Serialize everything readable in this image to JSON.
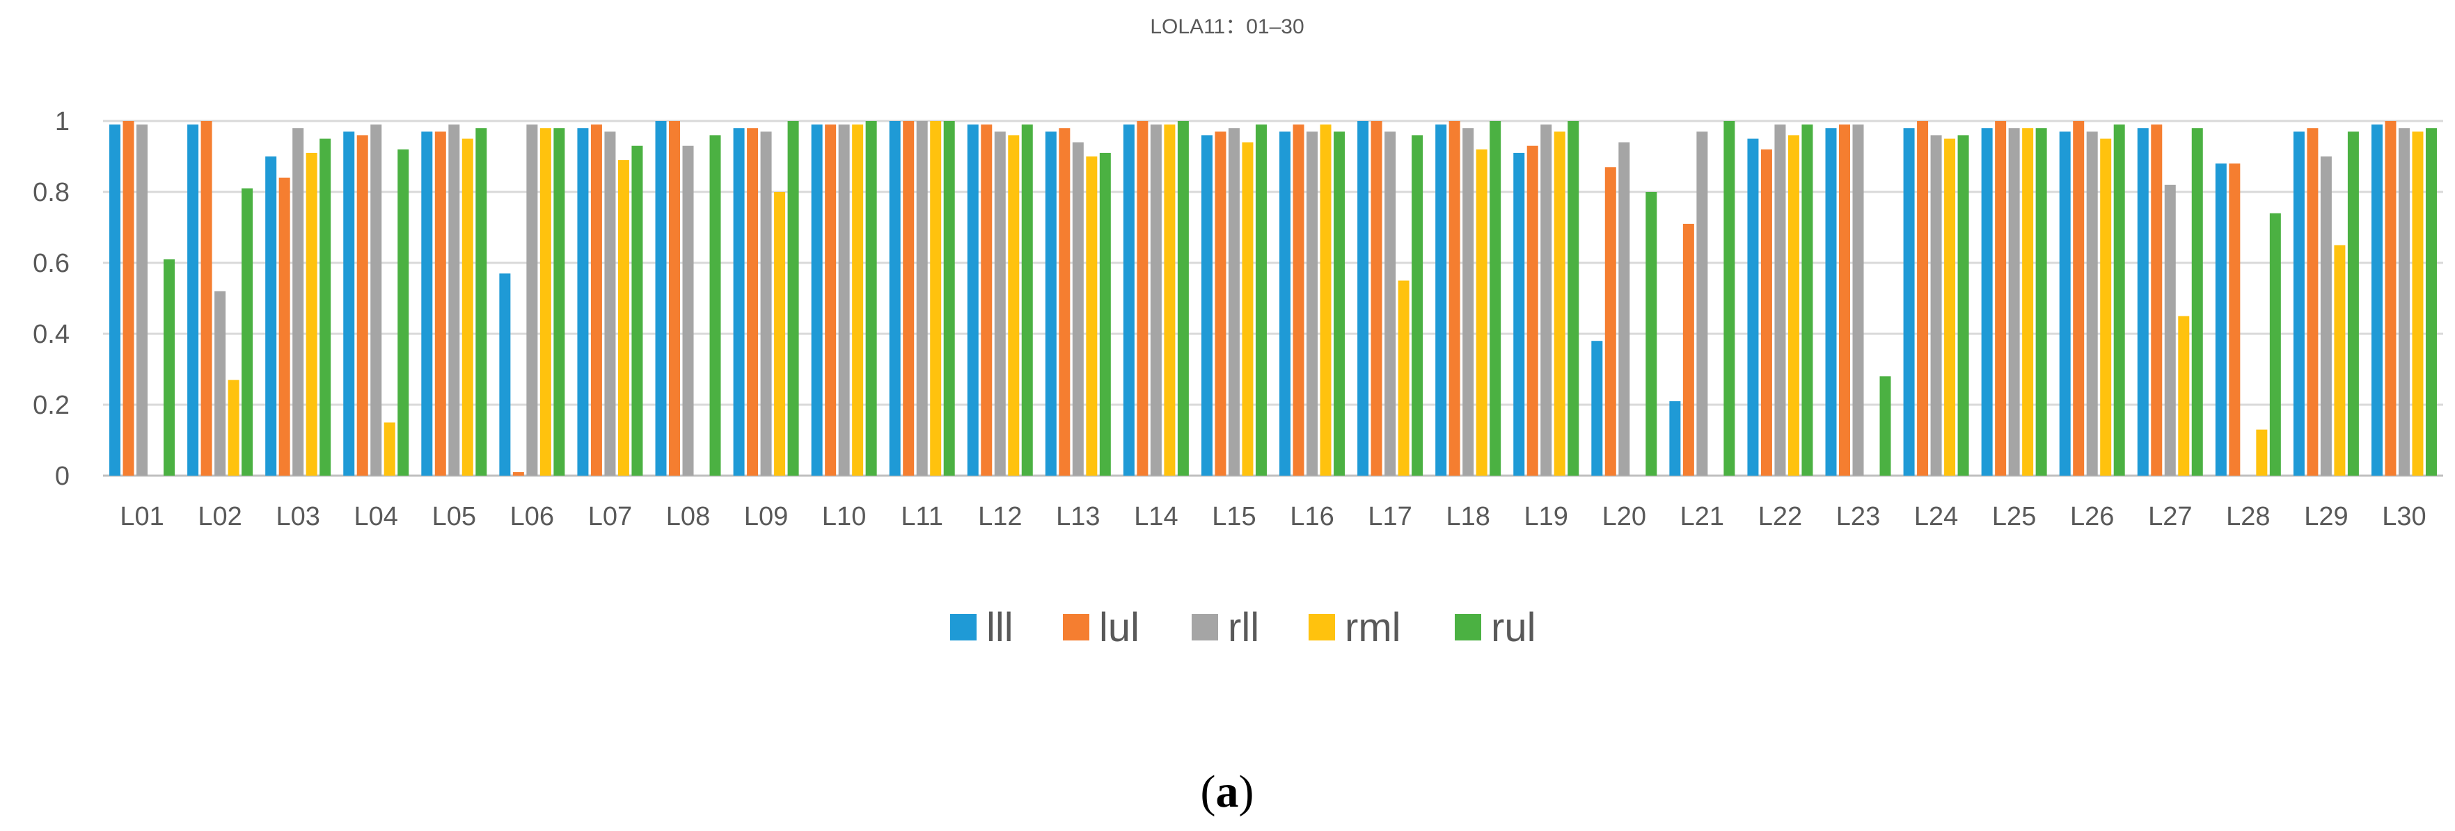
{
  "chart_data": {
    "type": "bar",
    "title": "LOLA11：01–30",
    "caption_prefix": "(",
    "caption_letter": "a",
    "caption_suffix": ")",
    "xlabel": "",
    "ylabel": "",
    "ylim": [
      0,
      1
    ],
    "yticks": [
      "0",
      "0.2",
      "0.4",
      "0.6",
      "0.8",
      "1"
    ],
    "grid": true,
    "legend_position": "bottom",
    "categories": [
      "L01",
      "L02",
      "L03",
      "L04",
      "L05",
      "L06",
      "L07",
      "L08",
      "L09",
      "L10",
      "L11",
      "L12",
      "L13",
      "L14",
      "L15",
      "L16",
      "L17",
      "L18",
      "L19",
      "L20",
      "L21",
      "L22",
      "L23",
      "L24",
      "L25",
      "L26",
      "L27",
      "L28",
      "L29",
      "L30"
    ],
    "series": [
      {
        "name": "lll",
        "color": "#1f9ad6",
        "values": [
          0.99,
          0.99,
          0.9,
          0.97,
          0.97,
          0.57,
          0.98,
          1.0,
          0.98,
          0.99,
          1.0,
          0.99,
          0.97,
          0.99,
          0.96,
          0.97,
          1.0,
          0.99,
          0.91,
          0.38,
          0.21,
          0.95,
          0.98,
          0.98,
          0.98,
          0.97,
          0.98,
          0.88,
          0.97,
          0.99
        ]
      },
      {
        "name": "lul",
        "color": "#f57e30",
        "values": [
          1.0,
          1.0,
          0.84,
          0.96,
          0.97,
          0.01,
          0.99,
          1.0,
          0.98,
          0.99,
          1.0,
          0.99,
          0.98,
          1.0,
          0.97,
          0.99,
          1.0,
          1.0,
          0.93,
          0.87,
          0.71,
          0.92,
          0.99,
          1.0,
          1.0,
          1.0,
          0.99,
          0.88,
          0.98,
          1.0
        ]
      },
      {
        "name": "rll",
        "color": "#a5a5a5",
        "values": [
          0.99,
          0.52,
          0.98,
          0.99,
          0.99,
          0.99,
          0.97,
          0.93,
          0.97,
          0.99,
          1.0,
          0.97,
          0.94,
          0.99,
          0.98,
          0.97,
          0.97,
          0.98,
          0.99,
          0.94,
          0.97,
          0.99,
          0.99,
          0.96,
          0.98,
          0.97,
          0.82,
          0,
          0.9,
          0.98
        ]
      },
      {
        "name": "rml",
        "color": "#ffc20e",
        "values": [
          0,
          0.27,
          0.91,
          0.15,
          0.95,
          0.98,
          0.89,
          0,
          0.8,
          0.99,
          1.0,
          0.96,
          0.9,
          0.99,
          0.94,
          0.99,
          0.55,
          0.92,
          0.97,
          0,
          0,
          0.96,
          0,
          0.95,
          0.98,
          0.95,
          0.45,
          0.13,
          0.65,
          0.97
        ]
      },
      {
        "name": "rul",
        "color": "#4bb142",
        "values": [
          0.61,
          0.81,
          0.95,
          0.92,
          0.98,
          0.98,
          0.93,
          0.96,
          1.0,
          1.0,
          1.0,
          0.99,
          0.91,
          1.0,
          0.99,
          0.97,
          0.96,
          1.0,
          1.0,
          0.8,
          1.0,
          0.99,
          0.28,
          0.96,
          0.98,
          0.99,
          0.98,
          0.74,
          0.97,
          0.98
        ]
      }
    ]
  }
}
